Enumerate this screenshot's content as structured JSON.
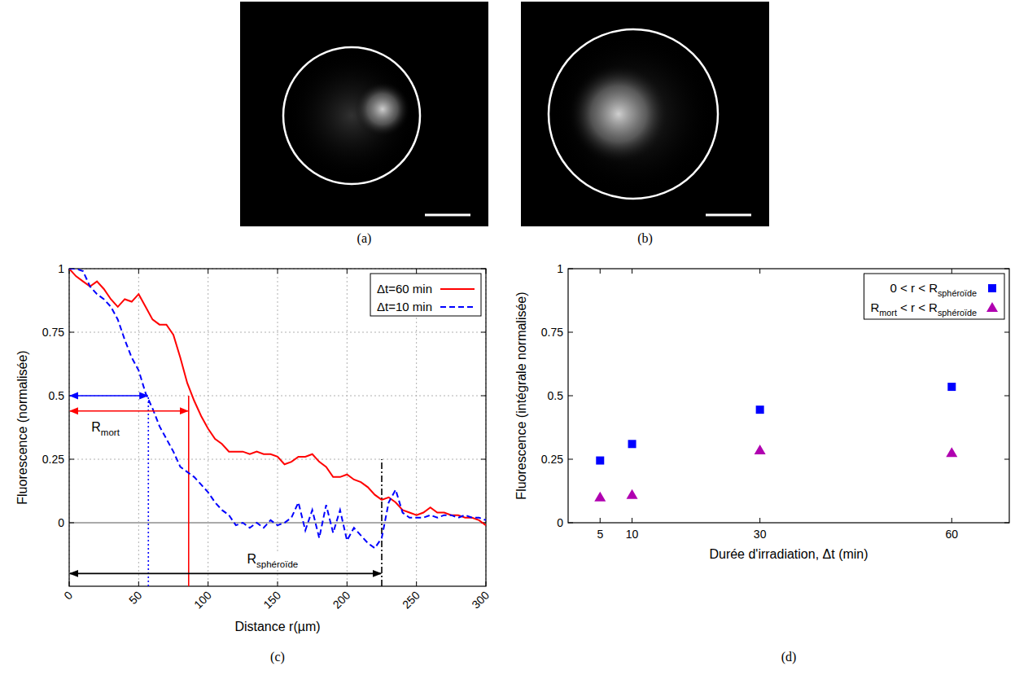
{
  "chart_data": [
    {
      "type": "image",
      "title": "(a)"
    },
    {
      "type": "image",
      "title": "(b)"
    },
    {
      "type": "line",
      "title": "(c)",
      "x_label": "Distance r(µm)",
      "y_label": "Fluorescence (normalisée)",
      "x": [
        0,
        5,
        10,
        15,
        20,
        25,
        30,
        35,
        40,
        45,
        50,
        55,
        60,
        65,
        70,
        75,
        80,
        85,
        90,
        95,
        100,
        105,
        110,
        115,
        120,
        125,
        130,
        135,
        140,
        145,
        150,
        155,
        160,
        165,
        170,
        175,
        180,
        185,
        190,
        195,
        200,
        205,
        210,
        215,
        220,
        225,
        230,
        235,
        240,
        245,
        250,
        255,
        260,
        265,
        270,
        275,
        280,
        285,
        290,
        295,
        300
      ],
      "series": [
        {
          "name": "Δt=60 min",
          "color": "#ff0000",
          "line_style": "solid",
          "values": [
            1.0,
            0.97,
            0.95,
            0.93,
            0.95,
            0.92,
            0.88,
            0.85,
            0.88,
            0.87,
            0.9,
            0.85,
            0.8,
            0.78,
            0.78,
            0.74,
            0.65,
            0.55,
            0.48,
            0.42,
            0.37,
            0.33,
            0.31,
            0.28,
            0.28,
            0.28,
            0.27,
            0.28,
            0.27,
            0.27,
            0.26,
            0.23,
            0.24,
            0.26,
            0.26,
            0.27,
            0.24,
            0.22,
            0.18,
            0.18,
            0.19,
            0.17,
            0.16,
            0.14,
            0.11,
            0.09,
            0.1,
            0.08,
            0.05,
            0.04,
            0.03,
            0.04,
            0.06,
            0.04,
            0.04,
            0.03,
            0.03,
            0.02,
            0.02,
            0.01,
            -0.01
          ]
        },
        {
          "name": "Δt=10 min",
          "color": "#0000ff",
          "line_style": "dashed",
          "values": [
            1.0,
            1.0,
            0.99,
            0.93,
            0.9,
            0.88,
            0.85,
            0.8,
            0.72,
            0.65,
            0.6,
            0.51,
            0.45,
            0.38,
            0.33,
            0.28,
            0.22,
            0.2,
            0.18,
            0.15,
            0.12,
            0.08,
            0.05,
            0.03,
            -0.01,
            0.0,
            -0.02,
            0.0,
            -0.02,
            0.01,
            -0.01,
            0.0,
            0.02,
            0.08,
            -0.03,
            0.05,
            -0.06,
            0.07,
            -0.04,
            0.05,
            -0.07,
            -0.02,
            -0.05,
            -0.08,
            -0.1,
            -0.06,
            0.08,
            0.13,
            0.04,
            0.02,
            0.02,
            0.02,
            0.03,
            0.02,
            0.03,
            0.03,
            0.02,
            0.03,
            0.02,
            0.02,
            0.01
          ]
        }
      ],
      "xlim": [
        0,
        300
      ],
      "ylim": [
        -0.25,
        1
      ],
      "xticks": [
        0,
        50,
        100,
        150,
        200,
        250,
        300
      ],
      "yticks": [
        0,
        0.25,
        0.5,
        0.75,
        1
      ],
      "grid": true,
      "legend": "upper right",
      "annotations": [
        {
          "text": [
            {
              "text": "R"
            },
            {
              "sub": "mort"
            }
          ],
          "x": 16,
          "y": 0.36
        },
        {
          "text": [
            {
              "text": "R"
            },
            {
              "sub": "sphéroïde"
            }
          ],
          "x": 128,
          "y": -0.16
        }
      ],
      "arrows": [
        {
          "x": [
            0,
            57
          ],
          "y": 0.5,
          "color": "#0000ff"
        },
        {
          "x": [
            0,
            86
          ],
          "y": 0.44,
          "color": "#ff0000"
        },
        {
          "x": [
            0,
            225
          ],
          "y": -0.2,
          "color": "#000000"
        }
      ],
      "vlines": [
        {
          "x": 57,
          "y": [
            -0.25,
            0.5
          ],
          "color": "#0000ff",
          "line_style": "dotted"
        },
        {
          "x": 86,
          "y": [
            -0.25,
            0.5
          ],
          "color": "#ff0000",
          "line_style": "solid"
        },
        {
          "x": 225,
          "y": [
            -0.25,
            0.25
          ],
          "color": "#000000",
          "line_style": "dashdot"
        }
      ]
    },
    {
      "type": "scatter",
      "title": "(d)",
      "x_label": "Durée d'irradiation, Δt (min)",
      "y_label": "Fluorescence (intégrale normalisée)",
      "x": [
        5,
        10,
        30,
        60
      ],
      "series": [
        {
          "name": [
            {
              "text": "0 < r < R"
            },
            {
              "sub": "sphéroïde"
            }
          ],
          "color": "#0000ff",
          "marker": "square",
          "values": [
            0.245,
            0.31,
            0.445,
            0.535
          ]
        },
        {
          "name": [
            {
              "text": "R"
            },
            {
              "sub": "mort"
            },
            {
              "text": " < r < R"
            },
            {
              "sub": "sphéroïde"
            }
          ],
          "color": "#b000b0",
          "marker": "triangle",
          "values": [
            0.1,
            0.11,
            0.285,
            0.275
          ]
        }
      ],
      "xlim": [
        0,
        69
      ],
      "ylim": [
        0,
        1
      ],
      "xticks": [
        5,
        10,
        30,
        60
      ],
      "yticks": [
        0,
        0.25,
        0.5,
        0.75,
        1
      ],
      "grid": false,
      "legend": "upper right"
    }
  ]
}
